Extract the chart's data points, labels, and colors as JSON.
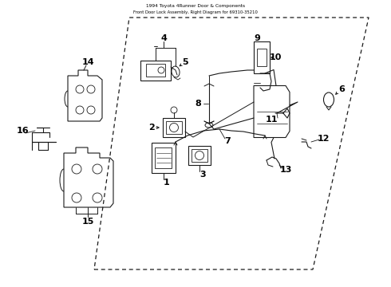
{
  "background_color": "#ffffff",
  "line_color": "#1a1a1a",
  "fig_width": 4.9,
  "fig_height": 3.6,
  "dpi": 100,
  "door_outline": {
    "x": [
      1.18,
      3.92,
      4.62,
      1.62,
      1.18
    ],
    "y": [
      0.22,
      0.22,
      3.38,
      3.38,
      0.22
    ]
  }
}
